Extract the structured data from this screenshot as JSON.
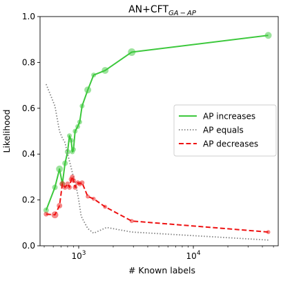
{
  "chart_data": {
    "type": "line",
    "title": "AN+CFT",
    "title_subscript": "GA − AP",
    "xlabel": "# Known labels",
    "ylabel": "Likelihood",
    "xscale": "log",
    "xlim": [
      460,
      55000
    ],
    "ylim": [
      0.0,
      1.0
    ],
    "xtick_labels": [
      {
        "value": 1000,
        "base": "10",
        "exp": "3"
      },
      {
        "value": 10000,
        "base": "10",
        "exp": "4"
      }
    ],
    "yticks": [
      "0.0",
      "0.2",
      "0.4",
      "0.6",
      "0.8",
      "1.0"
    ],
    "grid": false,
    "legend_position": "center-right",
    "series": [
      {
        "name": "AP increases",
        "color": "#3cc83c",
        "style": "solid",
        "markers": true,
        "points": [
          {
            "x": 520,
            "y": 0.155,
            "s": 4
          },
          {
            "x": 620,
            "y": 0.255,
            "s": 4
          },
          {
            "x": 680,
            "y": 0.335,
            "s": 5
          },
          {
            "x": 720,
            "y": 0.27,
            "s": 4
          },
          {
            "x": 760,
            "y": 0.36,
            "s": 4
          },
          {
            "x": 800,
            "y": 0.41,
            "s": 4
          },
          {
            "x": 830,
            "y": 0.48,
            "s": 3.5
          },
          {
            "x": 860,
            "y": 0.46,
            "s": 3.5
          },
          {
            "x": 880,
            "y": 0.41,
            "s": 3.5
          },
          {
            "x": 900,
            "y": 0.42,
            "s": 3.5
          },
          {
            "x": 930,
            "y": 0.5,
            "s": 3.5
          },
          {
            "x": 980,
            "y": 0.52,
            "s": 3.5
          },
          {
            "x": 1020,
            "y": 0.54,
            "s": 3.5
          },
          {
            "x": 1070,
            "y": 0.61,
            "s": 3.5
          },
          {
            "x": 1200,
            "y": 0.68,
            "s": 5
          },
          {
            "x": 1350,
            "y": 0.745,
            "s": 3.5
          },
          {
            "x": 1700,
            "y": 0.765,
            "s": 5
          },
          {
            "x": 2900,
            "y": 0.845,
            "s": 5.5
          },
          {
            "x": 45000,
            "y": 0.918,
            "s": 5
          }
        ]
      },
      {
        "name": "AP equals",
        "color": "#808080",
        "style": "dotted",
        "markers": false,
        "points": [
          {
            "x": 520,
            "y": 0.705
          },
          {
            "x": 620,
            "y": 0.61
          },
          {
            "x": 680,
            "y": 0.5
          },
          {
            "x": 720,
            "y": 0.47
          },
          {
            "x": 760,
            "y": 0.45
          },
          {
            "x": 800,
            "y": 0.4
          },
          {
            "x": 850,
            "y": 0.35
          },
          {
            "x": 900,
            "y": 0.3
          },
          {
            "x": 950,
            "y": 0.26
          },
          {
            "x": 1000,
            "y": 0.2
          },
          {
            "x": 1050,
            "y": 0.13
          },
          {
            "x": 1100,
            "y": 0.11
          },
          {
            "x": 1200,
            "y": 0.075
          },
          {
            "x": 1350,
            "y": 0.055
          },
          {
            "x": 1500,
            "y": 0.065
          },
          {
            "x": 1750,
            "y": 0.08
          },
          {
            "x": 2900,
            "y": 0.06
          },
          {
            "x": 45000,
            "y": 0.025
          }
        ]
      },
      {
        "name": "AP decreases",
        "color": "#ee1111",
        "style": "dashed",
        "markers": true,
        "points": [
          {
            "x": 520,
            "y": 0.138,
            "s": 3.5
          },
          {
            "x": 620,
            "y": 0.135,
            "s": 5
          },
          {
            "x": 680,
            "y": 0.175,
            "s": 4
          },
          {
            "x": 720,
            "y": 0.27,
            "s": 4
          },
          {
            "x": 760,
            "y": 0.255,
            "s": 3.5
          },
          {
            "x": 800,
            "y": 0.27,
            "s": 3.5
          },
          {
            "x": 830,
            "y": 0.255,
            "s": 3.5
          },
          {
            "x": 860,
            "y": 0.29,
            "s": 3.5
          },
          {
            "x": 880,
            "y": 0.3,
            "s": 3.5
          },
          {
            "x": 900,
            "y": 0.285,
            "s": 3.5
          },
          {
            "x": 930,
            "y": 0.255,
            "s": 3.5
          },
          {
            "x": 980,
            "y": 0.275,
            "s": 3.5
          },
          {
            "x": 1020,
            "y": 0.27,
            "s": 3.5
          },
          {
            "x": 1070,
            "y": 0.275,
            "s": 3.5
          },
          {
            "x": 1200,
            "y": 0.215,
            "s": 3
          },
          {
            "x": 1350,
            "y": 0.205,
            "s": 3
          },
          {
            "x": 1700,
            "y": 0.17,
            "s": 3
          },
          {
            "x": 2900,
            "y": 0.108,
            "s": 3
          },
          {
            "x": 45000,
            "y": 0.06,
            "s": 3
          }
        ]
      }
    ]
  }
}
